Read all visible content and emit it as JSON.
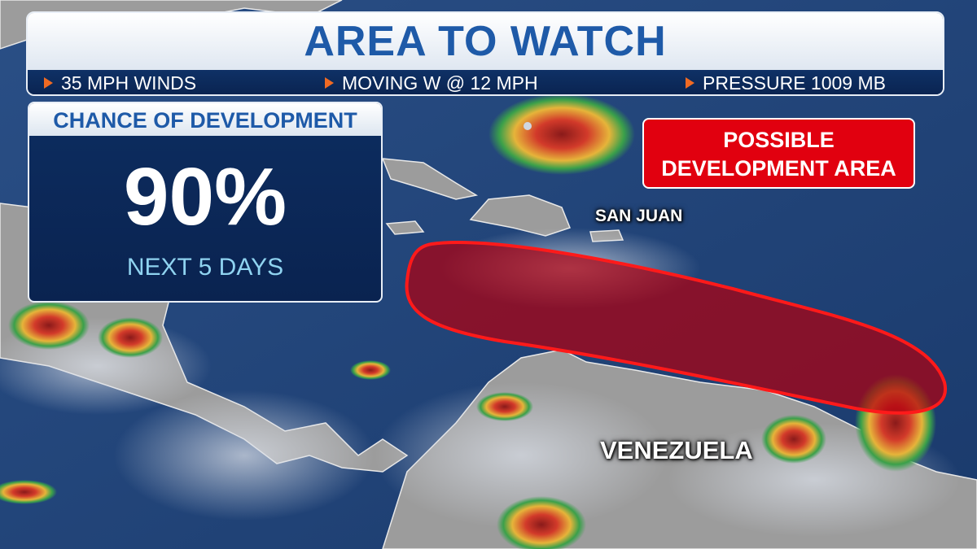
{
  "header": {
    "title": "AREA TO WATCH",
    "stats": [
      {
        "icon": "orange-triangle-bullet-icon",
        "label": "35 MPH WINDS"
      },
      {
        "icon": "orange-triangle-bullet-icon",
        "label": "MOVING W @ 12 MPH"
      },
      {
        "icon": "orange-triangle-bullet-icon",
        "label": "PRESSURE 1009 MB"
      }
    ]
  },
  "chance": {
    "heading": "CHANCE OF DEVELOPMENT",
    "value": "90%",
    "period": "NEXT 5 DAYS"
  },
  "development_area": {
    "label_line1": "POSSIBLE",
    "label_line2": "DEVELOPMENT AREA",
    "color": "#e1000f"
  },
  "map": {
    "places": [
      "SAN JUAN",
      "VENEZUELA"
    ],
    "colors": {
      "ocean": "#1d3f74",
      "land": "#9a9a9a",
      "accent": "#1e5aa8",
      "bullet": "#f06a23"
    }
  }
}
